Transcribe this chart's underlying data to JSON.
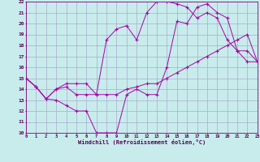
{
  "xlabel": "Windchill (Refroidissement éolien,°C)",
  "bg_color": "#c8ecec",
  "grid_color": "#aaccaa",
  "line_color": "#aa00aa",
  "xlim": [
    0,
    23
  ],
  "ylim": [
    10,
    22
  ],
  "xticks": [
    0,
    1,
    2,
    3,
    4,
    5,
    6,
    7,
    8,
    9,
    10,
    11,
    12,
    13,
    14,
    15,
    16,
    17,
    18,
    19,
    20,
    21,
    22,
    23
  ],
  "yticks": [
    10,
    11,
    12,
    13,
    14,
    15,
    16,
    17,
    18,
    19,
    20,
    21,
    22
  ],
  "line1_x": [
    0,
    1,
    2,
    3,
    4,
    5,
    6,
    7,
    8,
    9,
    10,
    11,
    12,
    13,
    14,
    15,
    16,
    17,
    18,
    19,
    20,
    21,
    22,
    23
  ],
  "line1_y": [
    15,
    14.2,
    13.1,
    13.0,
    12.5,
    12.0,
    12.0,
    10.0,
    10.0,
    10.0,
    13.5,
    14.0,
    13.5,
    13.5,
    16.0,
    20.2,
    20.0,
    21.5,
    21.8,
    21.0,
    20.5,
    17.5,
    17.5,
    16.5
  ],
  "line2_x": [
    0,
    1,
    2,
    3,
    4,
    5,
    6,
    7,
    8,
    9,
    10,
    11,
    12,
    13,
    14,
    15,
    16,
    17,
    18,
    19,
    20,
    21,
    22,
    23
  ],
  "line2_y": [
    15,
    14.2,
    13.1,
    14.0,
    14.2,
    13.5,
    13.5,
    13.5,
    13.5,
    13.5,
    14.0,
    14.2,
    14.5,
    14.5,
    15.0,
    15.5,
    16.0,
    16.5,
    17.0,
    17.5,
    18.0,
    18.5,
    19.0,
    16.5
  ],
  "line3_x": [
    0,
    1,
    2,
    3,
    4,
    5,
    6,
    7,
    8,
    9,
    10,
    11,
    12,
    13,
    14,
    15,
    16,
    17,
    18,
    19,
    20,
    21,
    22,
    23
  ],
  "line3_y": [
    15,
    14.2,
    13.1,
    14.0,
    14.5,
    14.5,
    14.5,
    13.5,
    18.5,
    19.5,
    19.8,
    18.5,
    21.0,
    22.0,
    22.0,
    21.8,
    21.5,
    20.5,
    21.0,
    20.5,
    18.5,
    17.5,
    16.5,
    16.5
  ]
}
